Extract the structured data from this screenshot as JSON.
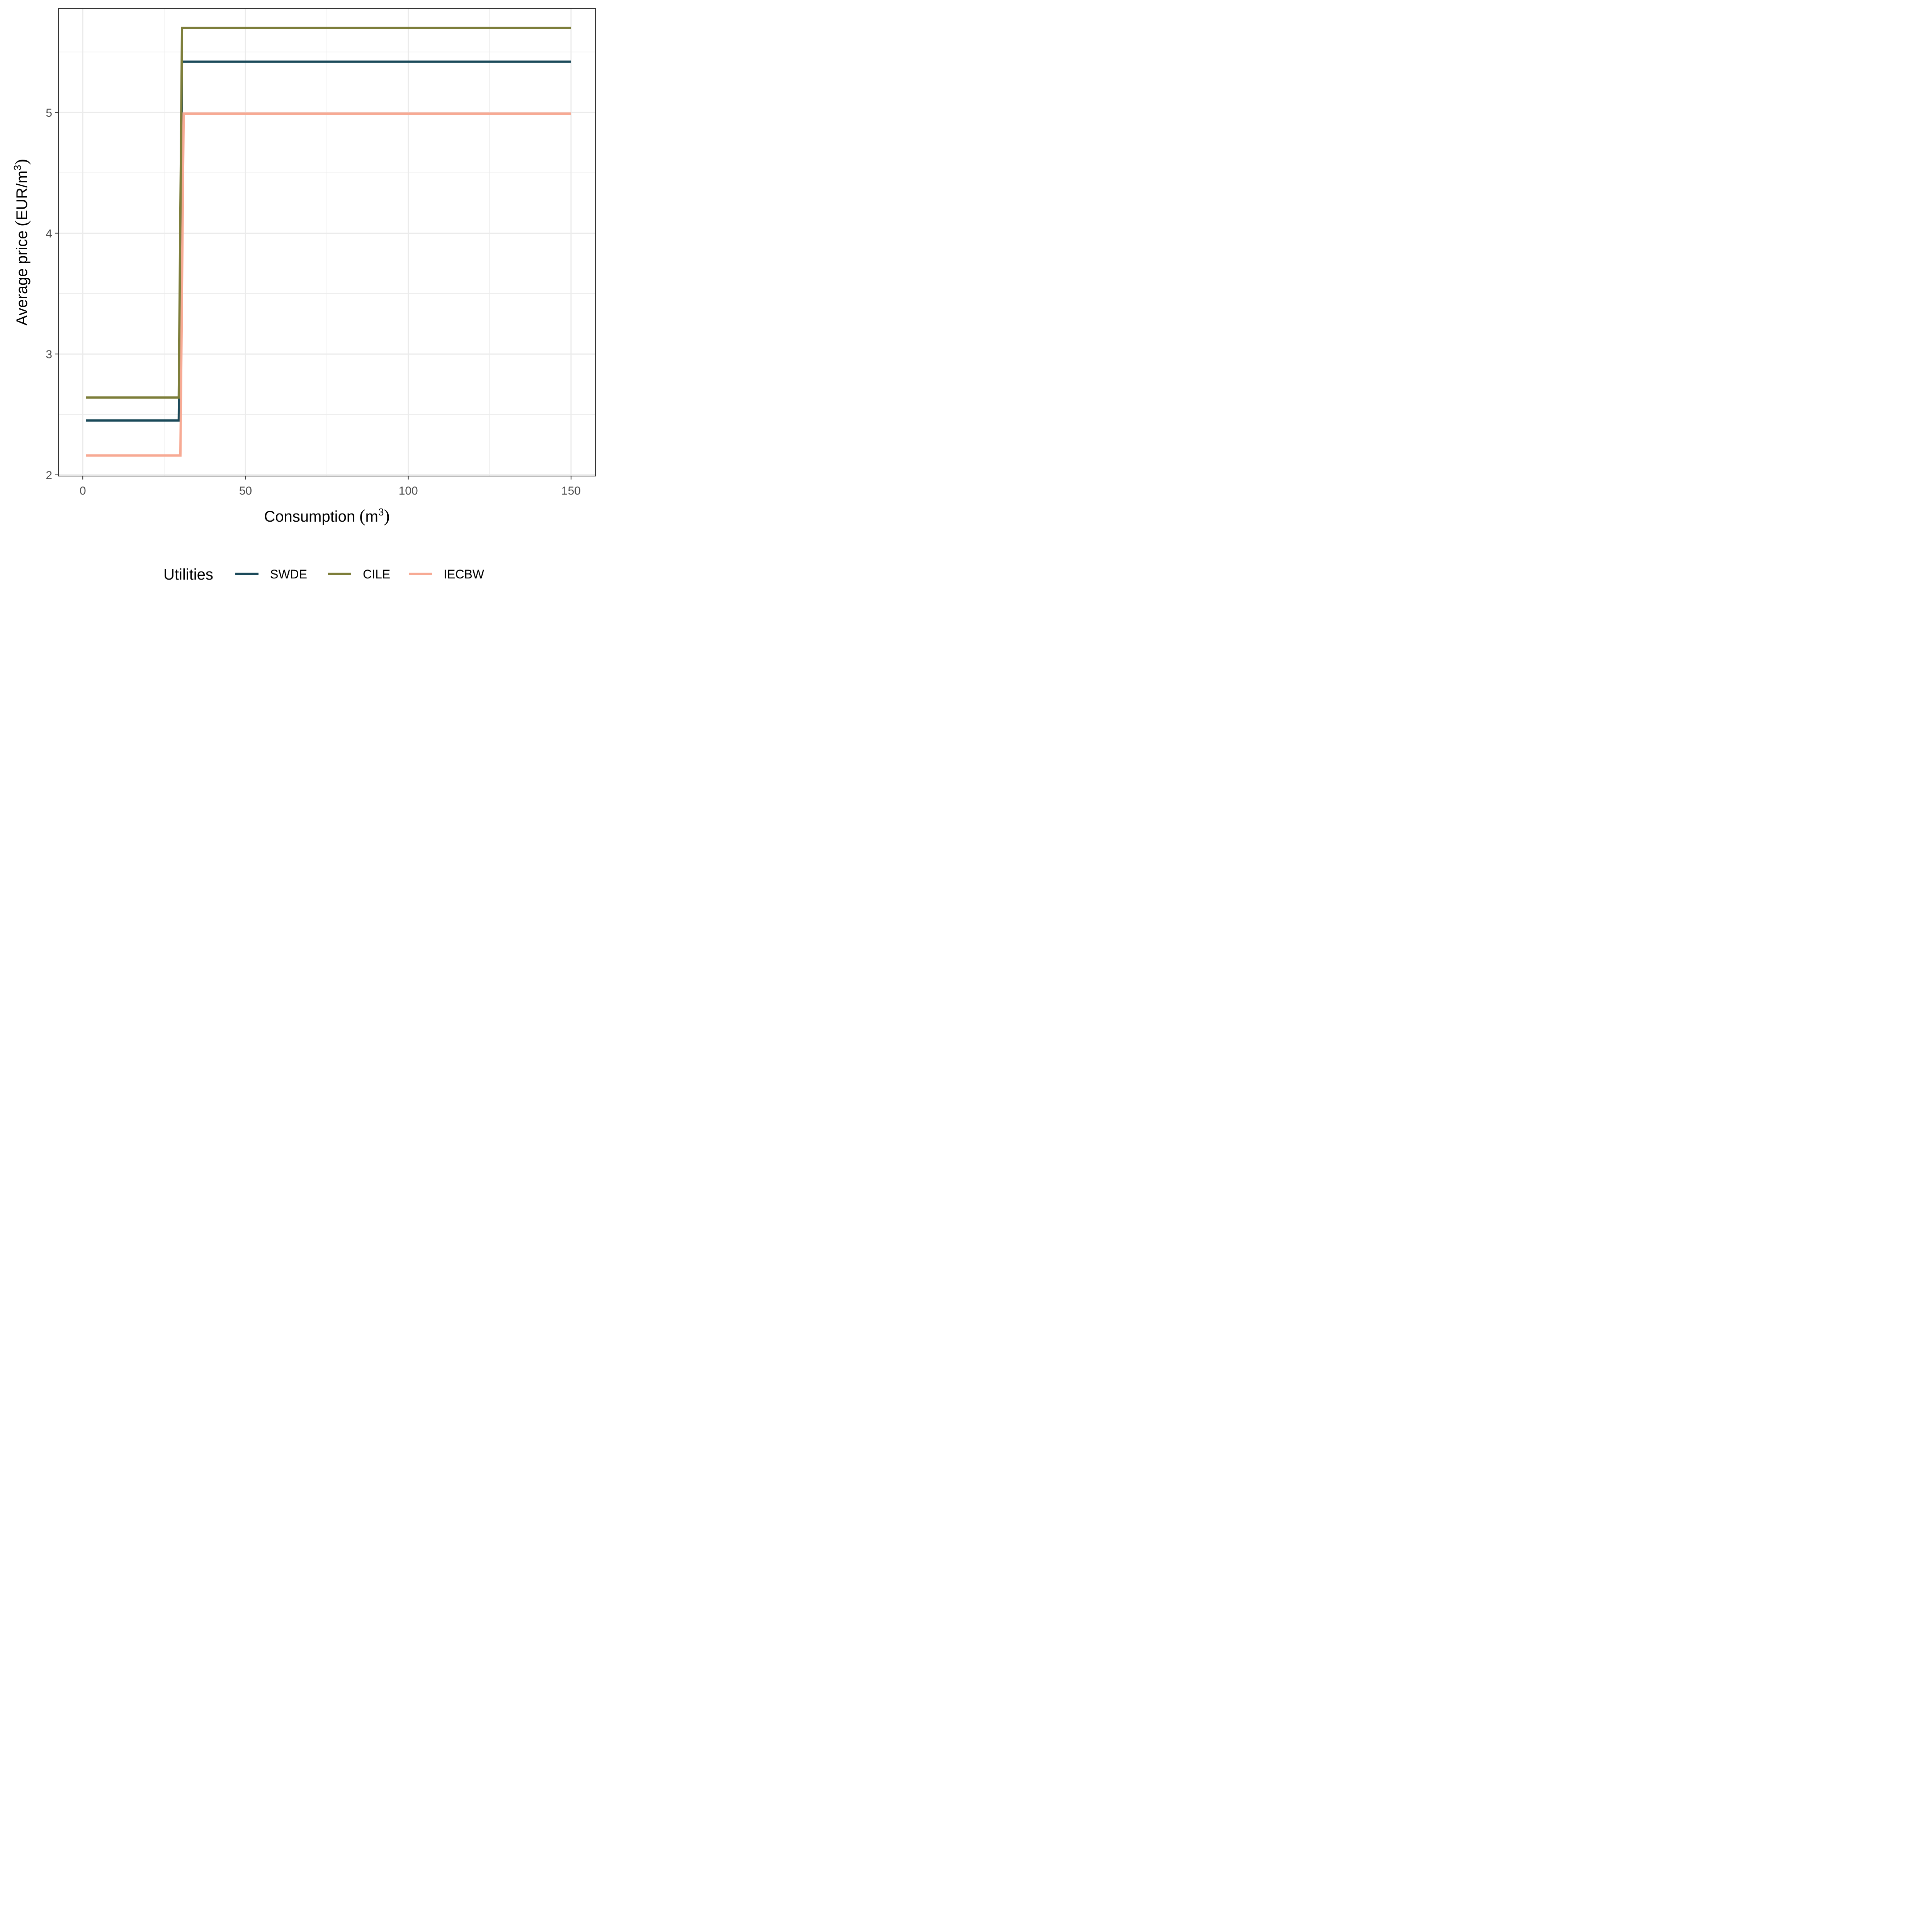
{
  "chart_data": {
    "type": "line",
    "step": true,
    "xlabel": "Consumption (m3)",
    "xlabel_parts": {
      "text": "Consumption ",
      "open": "(",
      "base": "m",
      "sup": "3",
      "close": ")"
    },
    "ylabel": "Average price (EUR/m3)",
    "ylabel_parts": {
      "text": "Average price ",
      "open": "(",
      "unit": "EUR/m",
      "sup": "3",
      "close": ")"
    },
    "xlim": [
      -7.5,
      157.5
    ],
    "ylim": [
      1.99,
      5.86
    ],
    "x_ticks": [
      0,
      50,
      100,
      150
    ],
    "x_tick_labels": [
      "0",
      "50",
      "100",
      "150"
    ],
    "y_ticks": [
      2,
      3,
      4,
      5
    ],
    "y_tick_labels": [
      "2",
      "3",
      "4",
      "5"
    ],
    "x_minor_gridlines": [
      25,
      75,
      125
    ],
    "y_minor_gridlines": [
      2.5,
      3.5,
      4.5,
      5.5
    ],
    "grid": true,
    "legend": {
      "title": "Utilities",
      "position": "bottom"
    },
    "series": [
      {
        "name": "SWDE",
        "color": "#1b4a5a",
        "x": [
          1,
          29.5,
          30.5,
          150
        ],
        "y": [
          2.45,
          2.45,
          5.42,
          5.42
        ]
      },
      {
        "name": "CILE",
        "color": "#7d7e3a",
        "x": [
          1,
          29.5,
          30.5,
          150
        ],
        "y": [
          2.64,
          2.64,
          5.7,
          5.7
        ]
      },
      {
        "name": "IECBW",
        "color": "#f7aa94",
        "x": [
          1,
          30,
          31,
          150
        ],
        "y": [
          2.16,
          2.16,
          4.99,
          4.99
        ]
      }
    ]
  }
}
